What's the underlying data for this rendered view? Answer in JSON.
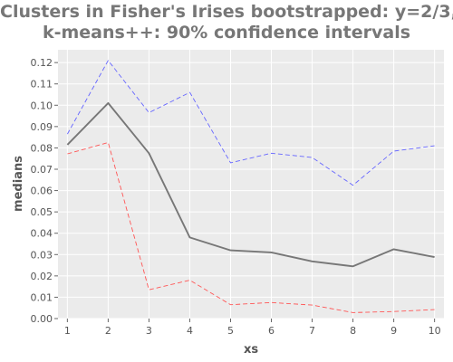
{
  "chart_data": {
    "type": "line",
    "title_lines": [
      "Clusters in Fisher's Irises bootstrapped: y=2/3,",
      "k-means++: 90% confidence intervals"
    ],
    "xlabel": "xs",
    "ylabel": "medians",
    "x": [
      1,
      2,
      3,
      4,
      5,
      6,
      7,
      8,
      9,
      10
    ],
    "xlim": [
      0.77,
      10.23
    ],
    "ylim": [
      0,
      0.126
    ],
    "yticks": [
      0.0,
      0.01,
      0.02,
      0.03,
      0.04,
      0.05,
      0.06,
      0.07,
      0.08,
      0.09,
      0.1,
      0.11,
      0.12
    ],
    "ytick_labels": [
      "0.00",
      "0.01",
      "0.02",
      "0.03",
      "0.04",
      "0.05",
      "0.06",
      "0.07",
      "0.08",
      "0.09",
      "0.10",
      "0.11",
      "0.12"
    ],
    "grid": true,
    "series": [
      {
        "values": [
          0.0865,
          0.121,
          0.0965,
          0.106,
          0.073,
          0.0775,
          0.0755,
          0.0625,
          0.0785,
          0.081
        ],
        "color": "#6666ff",
        "style": "dashed"
      },
      {
        "values": [
          0.0815,
          0.101,
          0.0775,
          0.038,
          0.032,
          0.031,
          0.0268,
          0.0245,
          0.0325,
          0.0288
        ],
        "color": "#777777",
        "style": "solid"
      },
      {
        "values": [
          0.0772,
          0.0825,
          0.0135,
          0.018,
          0.0065,
          0.0075,
          0.0063,
          0.0028,
          0.0033,
          0.0042
        ],
        "color": "#ff5555",
        "style": "dashed"
      }
    ]
  }
}
